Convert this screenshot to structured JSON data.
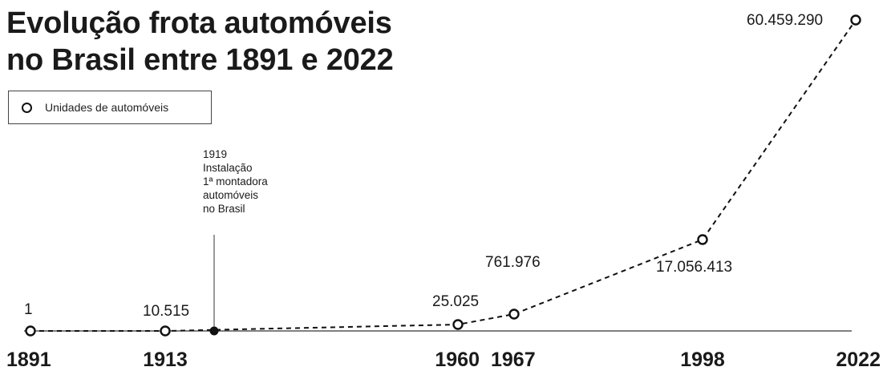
{
  "chart_data": {
    "type": "line",
    "title_lines": [
      "Evolução frota automóveis",
      "no Brasil entre 1891 e 2022"
    ],
    "legend": {
      "entries": [
        "Unidades de automóveis"
      ],
      "placement": "top-left"
    },
    "series": [
      {
        "name": "Unidades de automóveis",
        "points": [
          {
            "x": 1891,
            "y": 1,
            "label": "1"
          },
          {
            "x": 1913,
            "y": 10515,
            "label": "10.515"
          },
          {
            "x": 1960,
            "y": 25025,
            "label": "25.025"
          },
          {
            "x": 1967,
            "y": 761976,
            "label": "761.976"
          },
          {
            "x": 1998,
            "y": 17056413,
            "label": "17.056.413"
          },
          {
            "x": 2022,
            "y": 60459290,
            "label": "60.459.290"
          }
        ]
      }
    ],
    "x_tick_labels": [
      "1891",
      "1913",
      "1960",
      "1967",
      "1998",
      "2022"
    ],
    "annotation": {
      "x": 1919,
      "lines": [
        "1919",
        "Instalação",
        "1ª montadora",
        "automóveis",
        "no Brasil"
      ]
    },
    "line_style": "dashed",
    "grid": false,
    "colors": {
      "line": "#111111",
      "marker_fill": "#ffffff",
      "axis": "#333333",
      "text": "#1a1a1a"
    }
  }
}
